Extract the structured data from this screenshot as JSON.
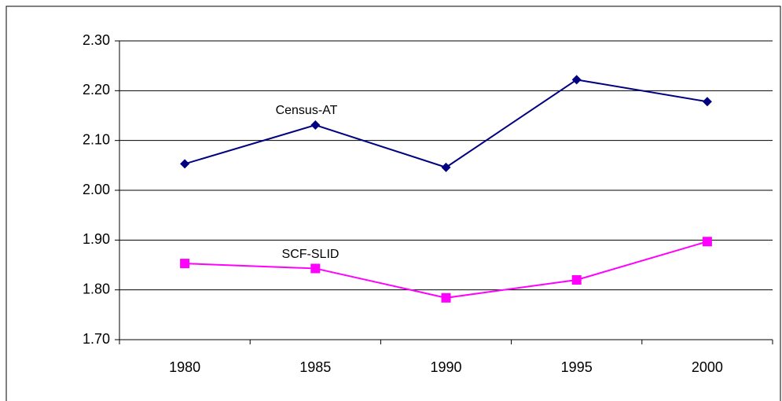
{
  "chart_data": {
    "type": "line",
    "categories": [
      "1980",
      "1985",
      "1990",
      "1995",
      "2000"
    ],
    "series": [
      {
        "name": "Census-AT",
        "color": "#000080",
        "marker": "diamond",
        "values": [
          2.053,
          2.131,
          2.046,
          2.222,
          2.178
        ]
      },
      {
        "name": "SCF-SLID",
        "color": "#ff00ff",
        "marker": "square",
        "values": [
          1.853,
          1.843,
          1.784,
          1.82,
          1.897
        ]
      }
    ],
    "ylim": [
      1.7,
      2.3
    ],
    "yticks": [
      {
        "value": 1.7,
        "label": "1.70"
      },
      {
        "value": 1.8,
        "label": "1.80"
      },
      {
        "value": 1.9,
        "label": "1.90"
      },
      {
        "value": 2.0,
        "label": "2.00"
      },
      {
        "value": 2.1,
        "label": "2.10"
      },
      {
        "value": 2.2,
        "label": "2.20"
      },
      {
        "value": 2.3,
        "label": "2.30"
      }
    ],
    "grid": true
  }
}
